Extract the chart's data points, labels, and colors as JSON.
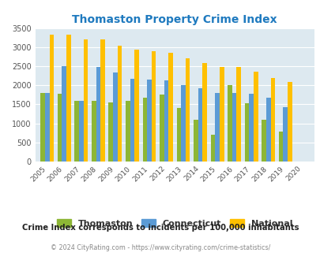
{
  "title": "Thomaston Property Crime Index",
  "years": [
    "2005",
    "2006",
    "2007",
    "2008",
    "2009",
    "2010",
    "2011",
    "2012",
    "2013",
    "2014",
    "2015",
    "2016",
    "2017",
    "2018",
    "2019",
    "2020"
  ],
  "thomaston": [
    1800,
    1775,
    1600,
    1590,
    1545,
    1590,
    1685,
    1750,
    1400,
    1090,
    700,
    2000,
    1530,
    1090,
    785,
    0
  ],
  "connecticut": [
    1800,
    2510,
    1600,
    2480,
    2350,
    2180,
    2155,
    2135,
    2000,
    1930,
    1800,
    1800,
    1775,
    1680,
    1430,
    0
  ],
  "national": [
    3340,
    3340,
    3210,
    3210,
    3040,
    2950,
    2900,
    2855,
    2720,
    2600,
    2490,
    2480,
    2370,
    2200,
    2100,
    0
  ],
  "bar_colors": {
    "thomaston": "#8DB635",
    "connecticut": "#5B9BD5",
    "national": "#FFC000"
  },
  "ylim": [
    0,
    3500
  ],
  "yticks": [
    0,
    500,
    1000,
    1500,
    2000,
    2500,
    3000,
    3500
  ],
  "bg_color": "#DDE9F0",
  "grid_color": "#FFFFFF",
  "title_color": "#1F7ABF",
  "title_fontsize": 10,
  "legend_labels": [
    "Thomaston",
    "Connecticut",
    "National"
  ],
  "footnote1": "Crime Index corresponds to incidents per 100,000 inhabitants",
  "footnote2": "© 2024 CityRating.com - https://www.cityrating.com/crime-statistics/",
  "footnote1_color": "#222222",
  "footnote2_color": "#888888",
  "bar_width": 0.26
}
